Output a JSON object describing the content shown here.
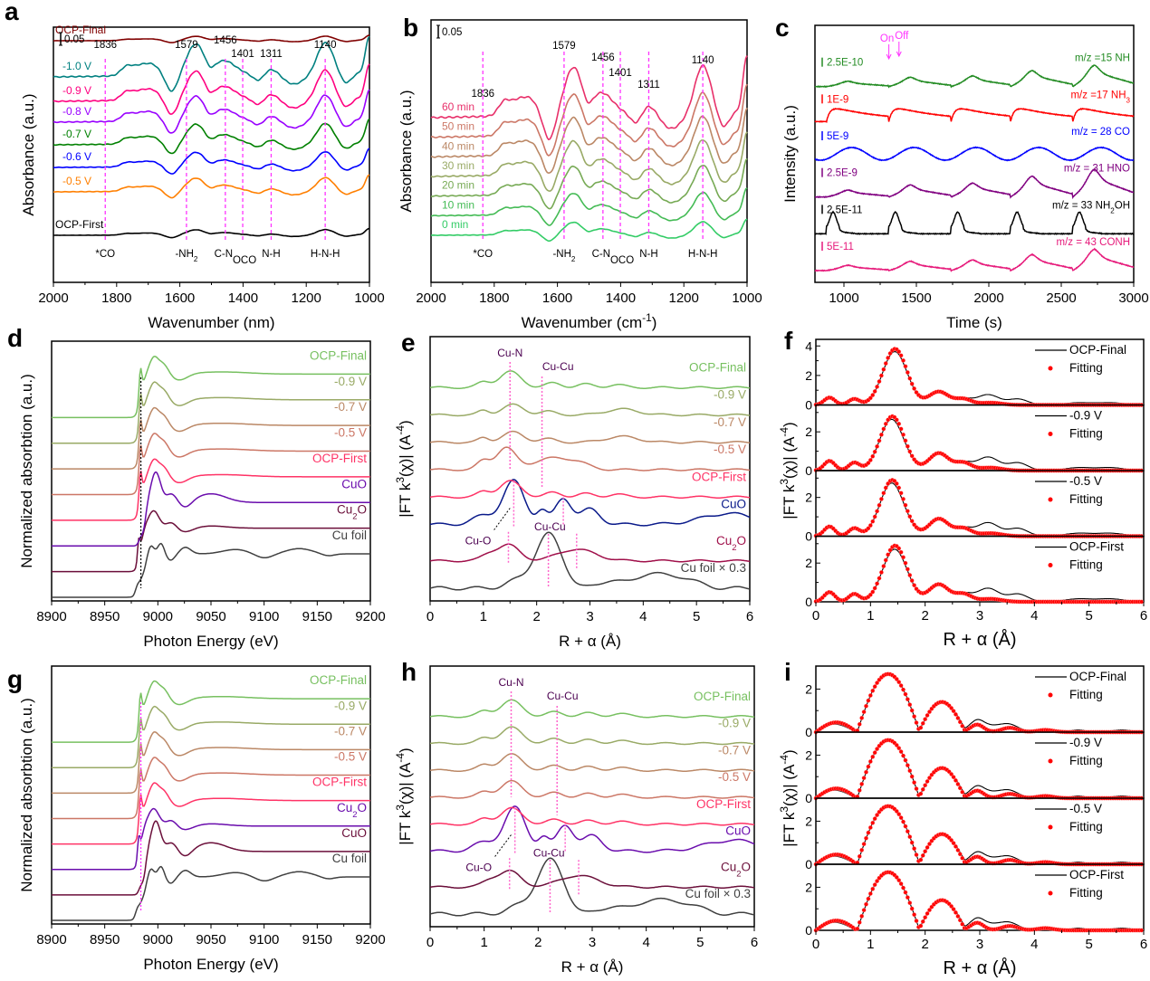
{
  "chart_data": [
    {
      "id": "a",
      "panel_letter": "a",
      "type": "line",
      "title": "",
      "xlabel": "Wavenumber (nm)",
      "ylabel": "Absorbance (a.u.)",
      "xlim": [
        2000,
        1000
      ],
      "x_reversed": true,
      "xticks": [
        2000,
        1800,
        1600,
        1400,
        1200,
        1000
      ],
      "yticks": [],
      "scale_bar": {
        "label": "0.05",
        "color": "#000000"
      },
      "peak_lines": [
        {
          "x": 1836,
          "label": "1836",
          "assignment": "*CO"
        },
        {
          "x": 1579,
          "label": "1579",
          "assignment": "-NH2"
        },
        {
          "x": 1456,
          "label": "1456",
          "assignment": "C-N"
        },
        {
          "x": 1401,
          "label": "1401",
          "assignment": "OCO"
        },
        {
          "x": 1311,
          "label": "1311",
          "assignment": "N-H"
        },
        {
          "x": 1140,
          "label": "1140",
          "assignment": "H-N-H"
        }
      ],
      "peak_line_color": "#ff33ff",
      "series": [
        {
          "name": "OCP-First",
          "color": "#000000",
          "amplitude": 0.25
        },
        {
          "name": "-0.5 V",
          "color": "#ff7f00",
          "amplitude": 0.5
        },
        {
          "name": "-0.6 V",
          "color": "#0000ff",
          "amplitude": 0.55
        },
        {
          "name": "-0.7 V",
          "color": "#008000",
          "amplitude": 0.75
        },
        {
          "name": "-0.8 V",
          "color": "#9900ff",
          "amplitude": 0.95
        },
        {
          "name": "-0.9 V",
          "color": "#ff0080",
          "amplitude": 1.1
        },
        {
          "name": "-1.0 V",
          "color": "#008080",
          "amplitude": 1.2
        },
        {
          "name": "OCP-Final",
          "color": "#800000",
          "amplitude": 0.2
        }
      ]
    },
    {
      "id": "b",
      "panel_letter": "b",
      "type": "line",
      "xlabel": "Wavenumber (cm-1)",
      "ylabel": "Absorbance (a.u.)",
      "xlim": [
        2000,
        1000
      ],
      "x_reversed": true,
      "xticks": [
        2000,
        1800,
        1600,
        1400,
        1200,
        1000
      ],
      "scale_bar": {
        "label": "0.05",
        "color": "#000000"
      },
      "peak_lines": [
        {
          "x": 1836,
          "label": "1836",
          "assignment": "*CO"
        },
        {
          "x": 1579,
          "label": "1579",
          "assignment": "-NH2"
        },
        {
          "x": 1456,
          "label": "1456",
          "assignment": "C-N"
        },
        {
          "x": 1401,
          "label": "1401",
          "assignment": "OCO"
        },
        {
          "x": 1311,
          "label": "1311",
          "assignment": "N-H"
        },
        {
          "x": 1140,
          "label": "1140",
          "assignment": "H-N-H"
        }
      ],
      "peak_line_color": "#ff33ff",
      "series": [
        {
          "name": "0 min",
          "color": "#33cc66",
          "amplitude": 0.35
        },
        {
          "name": "10 min",
          "color": "#44bb55",
          "amplitude": 0.6
        },
        {
          "name": "20 min",
          "color": "#77aa55",
          "amplitude": 0.8
        },
        {
          "name": "30 min",
          "color": "#99aa66",
          "amplitude": 0.95
        },
        {
          "name": "40 min",
          "color": "#bb8866",
          "amplitude": 1.05
        },
        {
          "name": "50 min",
          "color": "#cc7766",
          "amplitude": 1.15
        },
        {
          "name": "60 min",
          "color": "#e8306a",
          "amplitude": 1.35
        }
      ]
    },
    {
      "id": "c",
      "panel_letter": "c",
      "type": "line",
      "xlabel": "Time (s)",
      "ylabel": "Intensity (a.u.)",
      "xlim": [
        800,
        3000
      ],
      "xticks": [
        1000,
        1500,
        2000,
        2500,
        3000
      ],
      "annotations": [
        {
          "text": "On",
          "x": 1310
        },
        {
          "text": "Off",
          "x": 1380
        }
      ],
      "annotation_color": "#ff33ff",
      "pulse_starts": [
        880,
        1310,
        1740,
        2150,
        2580
      ],
      "series": [
        {
          "name": "m/z = 43 CONH",
          "label": "m/z = 43 CONH",
          "scale": "5E-11",
          "color": "#e6197a",
          "shape": "ramp"
        },
        {
          "name": "m/z = 33 NH2OH",
          "label": "m/z = 33 NH₂OH",
          "scale": "2.5E-11",
          "color": "#000000",
          "shape": "spike"
        },
        {
          "name": "m/z = 31 HNO",
          "label": "m/z = 31 HNO",
          "scale": "2.5E-9",
          "color": "#800080",
          "shape": "ramp"
        },
        {
          "name": "m/z = 28 CO",
          "label": "m/z = 28 CO",
          "scale": "5E-9",
          "color": "#0000ff",
          "shape": "wave"
        },
        {
          "name": "m/z = 17 NH3",
          "label": "m/z =17 NH₃",
          "scale": "1E-9",
          "color": "#ff0000",
          "shape": "decay"
        },
        {
          "name": "m/z = 15 NH",
          "label": "m/z =15 NH",
          "scale": "2.5E-10",
          "color": "#228b22",
          "shape": "ramp"
        }
      ]
    },
    {
      "id": "d",
      "panel_letter": "d",
      "type": "line",
      "xlabel": "Photon Energy (eV)",
      "ylabel": "Normalized absorbtion (a.u.)",
      "xlim": [
        8900,
        9200
      ],
      "xticks": [
        8900,
        8950,
        9000,
        9050,
        9100,
        9150,
        9200
      ],
      "ref_line": {
        "x": 8984,
        "color": "#000000"
      },
      "series": [
        {
          "name": "Cu foil",
          "label": "Cu foil",
          "color": "#404040",
          "kind": "foil"
        },
        {
          "name": "Cu2O",
          "label": "Cu₂O",
          "color": "#6b0f3a",
          "kind": "cu2o"
        },
        {
          "name": "CuO",
          "label": "CuO",
          "color": "#6a0dad",
          "kind": "cuo"
        },
        {
          "name": "OCP-First",
          "label": "OCP-First",
          "color": "#ff3366",
          "kind": "sample"
        },
        {
          "name": "-0.5 V",
          "label": "-0.5 V",
          "color": "#cc7766",
          "kind": "sample"
        },
        {
          "name": "-0.7 V",
          "label": "-0.7 V",
          "color": "#bb8866",
          "kind": "sample"
        },
        {
          "name": "-0.9 V",
          "label": "-0.9 V",
          "color": "#99aa66",
          "kind": "sample"
        },
        {
          "name": "OCP-Final",
          "label": "OCP-Final",
          "color": "#77c060",
          "kind": "sample"
        }
      ]
    },
    {
      "id": "e",
      "panel_letter": "e",
      "type": "line",
      "xlabel": "R + α (Å)",
      "ylabel": "|FT k3(χ)| (A-4)",
      "xlim": [
        0,
        6
      ],
      "xticks": [
        0,
        1,
        2,
        3,
        4,
        5,
        6
      ],
      "annotations": [
        {
          "text": "Cu-N",
          "x": 1.5
        },
        {
          "text": "Cu-Cu",
          "x": 2.3
        },
        {
          "text": "Cu-O",
          "x": 1.2
        },
        {
          "text": "Cu-Cu",
          "x": 2.3
        }
      ],
      "annotation_color": "#4b0050",
      "series": [
        {
          "name": "Cu foil × 0.3",
          "label": "Cu foil × 0.3",
          "color": "#404040",
          "kind": "foil"
        },
        {
          "name": "Cu2O",
          "label": "Cu₂O",
          "color": "#a0104a",
          "kind": "cu2o"
        },
        {
          "name": "CuO",
          "label": "CuO",
          "color": "#0a1a8a",
          "kind": "cuo"
        },
        {
          "name": "OCP-First",
          "label": "OCP-First",
          "color": "#ff3366",
          "kind": "s1"
        },
        {
          "name": "-0.5 V",
          "label": "-0.5 V",
          "color": "#cc7766",
          "kind": "s2"
        },
        {
          "name": "-0.7 V",
          "label": "-0.7 V",
          "color": "#bb8866",
          "kind": "s3"
        },
        {
          "name": "-0.9 V",
          "label": "-0.9 V",
          "color": "#99aa66",
          "kind": "s3"
        },
        {
          "name": "OCP-Final",
          "label": "OCP-Final",
          "color": "#77c060",
          "kind": "s1"
        }
      ]
    },
    {
      "id": "f",
      "panel_letter": "f",
      "type": "line",
      "xlabel": "R + α (Å)",
      "ylabel": "|FT k3(χ)| (A-4)",
      "xlim": [
        0,
        6
      ],
      "xticks": [
        0,
        1,
        2,
        3,
        4,
        5,
        6
      ],
      "fitting_color": "#ff0000",
      "subplots": [
        {
          "name": "OCP-Final",
          "ylim": [
            0,
            4.2
          ],
          "yticks": [
            0,
            2,
            4
          ],
          "peak": 3.8,
          "peak_x": 1.45
        },
        {
          "name": "-0.9 V",
          "ylim": [
            0,
            3.2
          ],
          "yticks": [
            0,
            2
          ],
          "peak": 2.8,
          "peak_x": 1.4
        },
        {
          "name": "-0.5 V",
          "ylim": [
            0,
            3.2
          ],
          "yticks": [
            0,
            2
          ],
          "peak": 2.9,
          "peak_x": 1.4
        },
        {
          "name": "OCP-First",
          "ylim": [
            0,
            3.2
          ],
          "yticks": [
            0,
            2
          ],
          "peak": 2.9,
          "peak_x": 1.45
        }
      ],
      "legend": {
        "fit_label": "Fitting",
        "position": "top-right"
      }
    },
    {
      "id": "g",
      "panel_letter": "g",
      "type": "line",
      "xlabel": "Photon Energy (eV)",
      "ylabel": "Normalized absorbtion (a.u.)",
      "xlim": [
        8900,
        9200
      ],
      "xticks": [
        8900,
        8950,
        9000,
        9050,
        9100,
        9150,
        9200
      ],
      "ref_line": {
        "x": 8984,
        "color": "#ff33ff"
      },
      "series": [
        {
          "name": "Cu foil",
          "label": "Cu foil",
          "color": "#404040",
          "kind": "foil"
        },
        {
          "name": "CuO",
          "label": "CuO",
          "color": "#6b0f3a",
          "kind": "cuo"
        },
        {
          "name": "Cu2O",
          "label": "Cu₂O",
          "color": "#6a0dad",
          "kind": "cu2o"
        },
        {
          "name": "OCP-First",
          "label": "OCP-First",
          "color": "#ff3366",
          "kind": "sample"
        },
        {
          "name": "-0.5 V",
          "label": "-0.5 V",
          "color": "#cc7766",
          "kind": "sample"
        },
        {
          "name": "-0.7 V",
          "label": "-0.7 V",
          "color": "#bb8866",
          "kind": "sample"
        },
        {
          "name": "-0.9 V",
          "label": "-0.9 V",
          "color": "#99aa66",
          "kind": "sample"
        },
        {
          "name": "OCP-Final",
          "label": "OCP-Final",
          "color": "#77c060",
          "kind": "sample"
        }
      ]
    },
    {
      "id": "h",
      "panel_letter": "h",
      "type": "line",
      "xlabel": "R + α (Å)",
      "ylabel": "|FT k3(χ)| (A-4)",
      "xlim": [
        0,
        6
      ],
      "xticks": [
        0,
        1,
        2,
        3,
        4,
        5,
        6
      ],
      "annotations": [
        {
          "text": "Cu-N",
          "x": 1.5
        },
        {
          "text": "Cu-Cu",
          "x": 2.35
        },
        {
          "text": "Cu-O",
          "x": 1.2
        },
        {
          "text": "Cu-Cu",
          "x": 2.25
        }
      ],
      "annotation_color": "#4b0050",
      "series": [
        {
          "name": "Cu foil × 0.3",
          "label": "Cu foil × 0.3",
          "color": "#404040",
          "kind": "foil"
        },
        {
          "name": "Cu2O",
          "label": "Cu₂O",
          "color": "#6b0f3a",
          "kind": "cu2o"
        },
        {
          "name": "CuO",
          "label": "CuO",
          "color": "#6a0dad",
          "kind": "cuo"
        },
        {
          "name": "OCP-First",
          "label": "OCP-First",
          "color": "#ff3366",
          "kind": "s1"
        },
        {
          "name": "-0.5 V",
          "label": "-0.5 V",
          "color": "#cc7766",
          "kind": "s1"
        },
        {
          "name": "-0.7 V",
          "label": "-0.7 V",
          "color": "#bb8866",
          "kind": "s1"
        },
        {
          "name": "-0.9 V",
          "label": "-0.9 V",
          "color": "#99aa66",
          "kind": "s1"
        },
        {
          "name": "OCP-Final",
          "label": "OCP-Final",
          "color": "#77c060",
          "kind": "s1"
        }
      ]
    },
    {
      "id": "i",
      "panel_letter": "i",
      "type": "line",
      "xlabel": "R + α (Å)",
      "ylabel": "|FT k3(χ)| (A-4)",
      "xlim": [
        0,
        6
      ],
      "xticks": [
        0,
        1,
        2,
        3,
        4,
        5,
        6
      ],
      "fitting_color": "#ff0000",
      "subplots": [
        {
          "name": "OCP-Final",
          "ylim": [
            0,
            2.9
          ],
          "yticks": [
            0,
            2
          ],
          "peak": 2.7,
          "peak_x": 1.38
        },
        {
          "name": "-0.9 V",
          "ylim": [
            0,
            2.9
          ],
          "yticks": [
            0,
            2
          ],
          "peak": 2.7,
          "peak_x": 1.38
        },
        {
          "name": "-0.5 V",
          "ylim": [
            0,
            2.9
          ],
          "yticks": [
            0,
            2
          ],
          "peak": 2.7,
          "peak_x": 1.38
        },
        {
          "name": "OCP-First",
          "ylim": [
            0,
            2.9
          ],
          "yticks": [
            0,
            2
          ],
          "peak": 2.7,
          "peak_x": 1.38
        }
      ],
      "legend": {
        "fit_label": "Fitting",
        "position": "top-right"
      }
    }
  ]
}
